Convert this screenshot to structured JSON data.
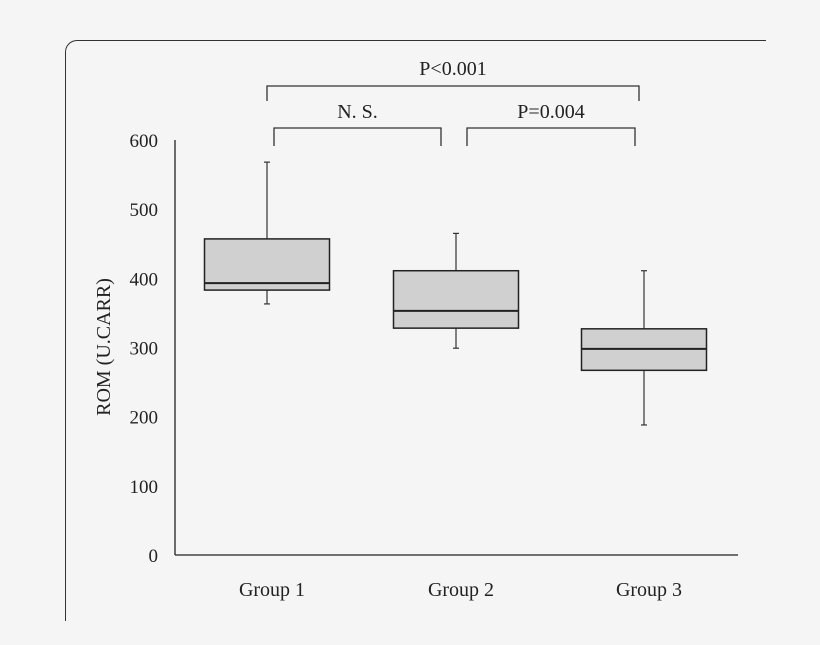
{
  "chart_data": {
    "type": "box",
    "ylabel": "ROM (U.CARR)",
    "xlabel": "",
    "ylim": [
      0,
      600
    ],
    "yticks": [
      0,
      100,
      200,
      300,
      400,
      500,
      600
    ],
    "categories": [
      "Group 1",
      "Group 2",
      "Group 3"
    ],
    "boxes": [
      {
        "min": 363,
        "q1": 383,
        "median": 393,
        "q3": 457,
        "max": 568
      },
      {
        "min": 299,
        "q1": 328,
        "median": 353,
        "q3": 411,
        "max": 465
      },
      {
        "min": 188,
        "q1": 267,
        "median": 298,
        "q3": 327,
        "max": 411
      }
    ],
    "box_fill": "#d0d0d0",
    "grid": false,
    "annotations": [
      {
        "from": 0,
        "to": 2,
        "label": "P<0.001"
      },
      {
        "from": 0,
        "to": 1,
        "label": "N. S."
      },
      {
        "from": 1,
        "to": 2,
        "label": "P=0.004"
      }
    ]
  }
}
